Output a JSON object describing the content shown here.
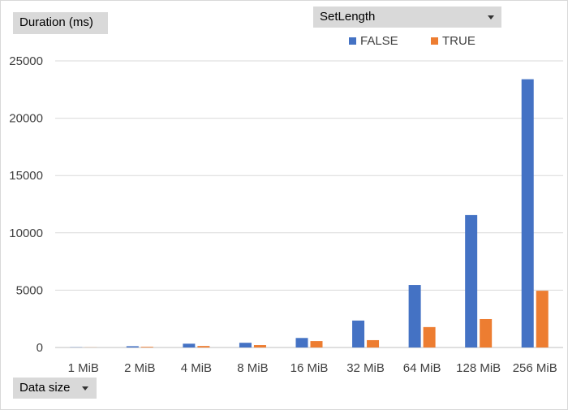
{
  "fields": {
    "value_field": "Duration (ms)",
    "series_field": "SetLength",
    "axis_field": "Data size"
  },
  "chart_data": {
    "type": "bar",
    "categories": [
      "1 MiB",
      "2 MiB",
      "4 MiB",
      "8 MiB",
      "16 MiB",
      "32 MiB",
      "64 MiB",
      "128 MiB",
      "256 MiB"
    ],
    "series": [
      {
        "name": "FALSE",
        "color": "#4472c4",
        "values": [
          20,
          110,
          330,
          410,
          830,
          2350,
          5450,
          11550,
          23400
        ]
      },
      {
        "name": "TRUE",
        "color": "#ed7d31",
        "values": [
          10,
          60,
          130,
          210,
          560,
          640,
          1780,
          2480,
          4950
        ]
      }
    ],
    "ylim": [
      0,
      25000
    ],
    "yticks": [
      "0",
      "5000",
      "10000",
      "15000",
      "20000",
      "25000"
    ],
    "grid": true,
    "legend_position": "top-right"
  }
}
